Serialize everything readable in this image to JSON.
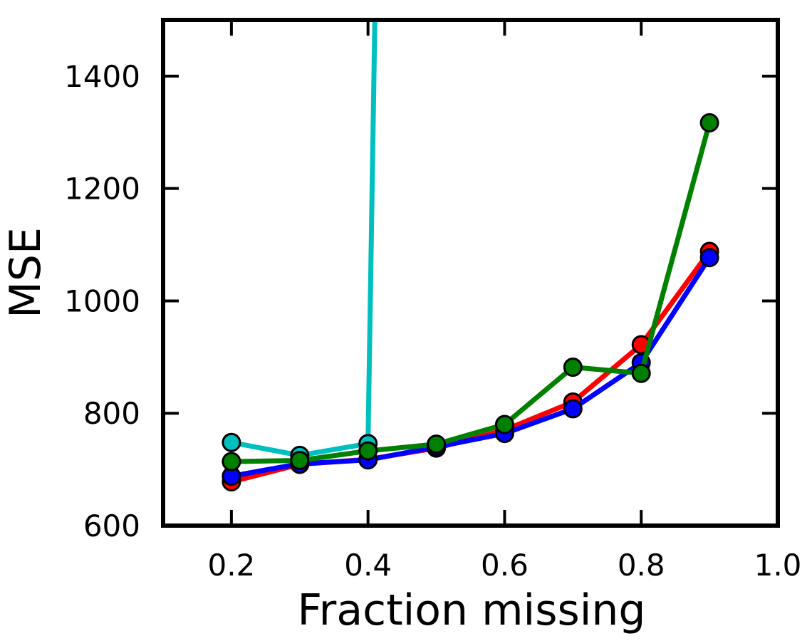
{
  "chart_data": {
    "type": "line",
    "title": "",
    "xlabel": "Fraction missing",
    "ylabel": "MSE",
    "xlim": [
      0.1,
      1.0
    ],
    "ylim": [
      600,
      1500
    ],
    "xticks": [
      0.2,
      0.4,
      0.6,
      0.8,
      1.0
    ],
    "xtick_labels": [
      "0.2",
      "0.4",
      "0.6",
      "0.8",
      "1.0"
    ],
    "yticks": [
      600,
      800,
      1000,
      1200,
      1400
    ],
    "ytick_labels": [
      "600",
      "800",
      "1000",
      "1200",
      "1400"
    ],
    "grid": false,
    "legend": "none",
    "series": [
      {
        "color": "#00bfbf",
        "x": [
          0.2,
          0.3,
          0.4,
          0.41
        ],
        "y": [
          748,
          725,
          746,
          1500
        ],
        "markers": [
          true,
          true,
          true,
          false
        ]
      },
      {
        "color": "#ff0000",
        "x": [
          0.2,
          0.3,
          0.4,
          0.5,
          0.6,
          0.7,
          0.8,
          0.9
        ],
        "y": [
          678,
          709,
          718,
          738,
          770,
          820,
          922,
          1088
        ],
        "markers": [
          true,
          true,
          true,
          true,
          true,
          true,
          true,
          true
        ]
      },
      {
        "color": "#0000ff",
        "x": [
          0.2,
          0.3,
          0.4,
          0.5,
          0.6,
          0.7,
          0.8,
          0.9
        ],
        "y": [
          688,
          710,
          717,
          740,
          764,
          808,
          890,
          1077
        ],
        "markers": [
          true,
          true,
          true,
          true,
          true,
          true,
          true,
          true
        ]
      },
      {
        "color": "#008000",
        "x": [
          0.2,
          0.3,
          0.4,
          0.5,
          0.6,
          0.7,
          0.8,
          0.9
        ],
        "y": [
          714,
          716,
          733,
          745,
          780,
          882,
          871,
          1317
        ],
        "markers": [
          true,
          true,
          true,
          true,
          true,
          true,
          true,
          true
        ]
      }
    ]
  }
}
